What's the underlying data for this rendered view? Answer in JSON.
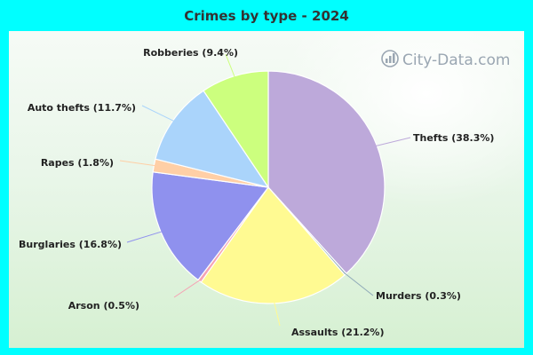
{
  "chart_data": {
    "type": "pie",
    "title": "Crimes by type - 2024",
    "slices": [
      {
        "label": "Thefts (38.3%)",
        "value": 38.3,
        "color": "#bda9da"
      },
      {
        "label": "Murders (0.3%)",
        "value": 0.3,
        "color": "#8fa9b8"
      },
      {
        "label": "Assaults (21.2%)",
        "value": 21.2,
        "color": "#fffa92"
      },
      {
        "label": "Arson (0.5%)",
        "value": 0.5,
        "color": "#f5a3b4"
      },
      {
        "label": "Burglaries (16.8%)",
        "value": 16.8,
        "color": "#8f91ee"
      },
      {
        "label": "Rapes (1.8%)",
        "value": 1.8,
        "color": "#ffcfa6"
      },
      {
        "label": "Auto thefts (11.7%)",
        "value": 11.7,
        "color": "#aad4fb"
      },
      {
        "label": "Robberies (9.4%)",
        "value": 9.4,
        "color": "#ccff7e"
      }
    ],
    "start_angle_deg": 90,
    "direction": "clockwise",
    "legend": "none"
  },
  "watermark": {
    "text": "City-Data.com",
    "icon": "city-data-logo-icon"
  }
}
